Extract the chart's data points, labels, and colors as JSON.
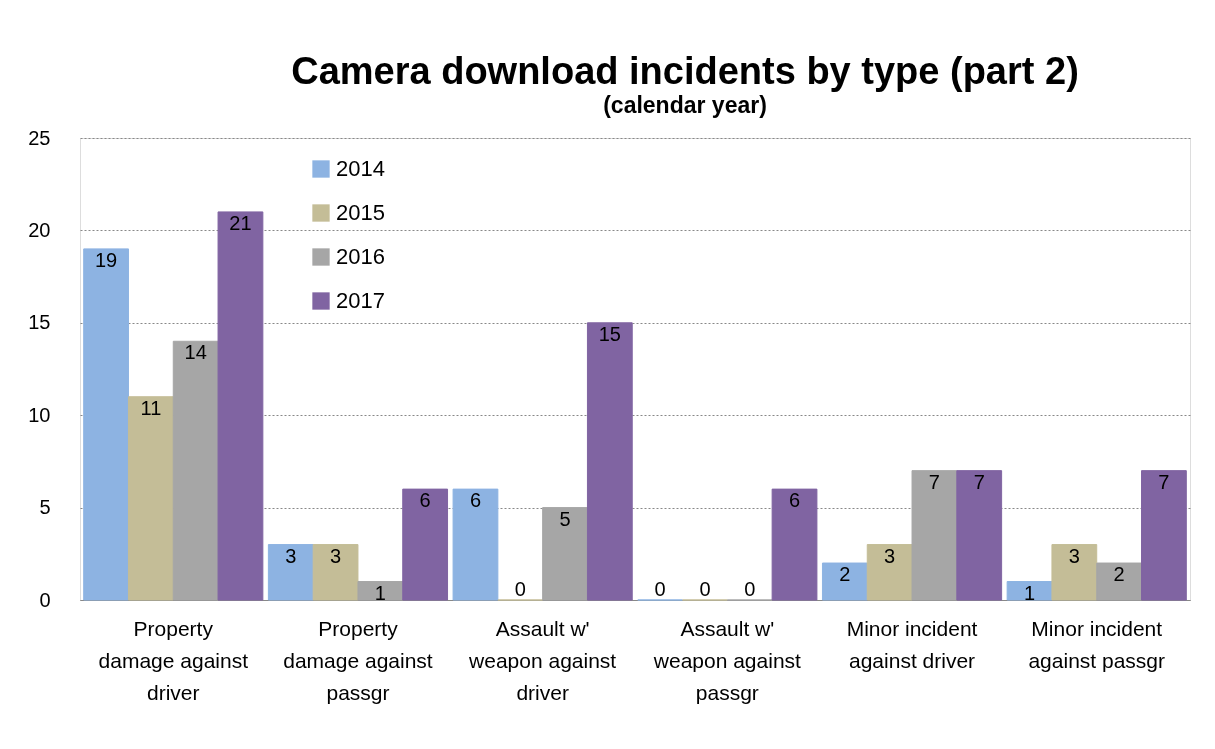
{
  "chart_data": {
    "type": "bar",
    "title": "Camera download incidents by type (part 2)",
    "subtitle": "(calendar year)",
    "categories": [
      "Property damage against driver",
      "Property damage against passgr",
      "Assault w' weapon against driver",
      "Assault w' weapon against passgr",
      "Minor incident against driver",
      "Minor incident against passgr"
    ],
    "series": [
      {
        "name": "2014",
        "color": "#8db3e2",
        "values": [
          19,
          3,
          6,
          0,
          2,
          1
        ]
      },
      {
        "name": "2015",
        "color": "#c4bd97",
        "values": [
          11,
          3,
          0,
          0,
          3,
          3
        ]
      },
      {
        "name": "2016",
        "color": "#a6a6a6",
        "values": [
          14,
          1,
          5,
          0,
          7,
          2
        ]
      },
      {
        "name": "2017",
        "color": "#8064a2",
        "values": [
          21,
          6,
          15,
          6,
          7,
          7
        ]
      }
    ],
    "ylim": [
      0,
      25
    ],
    "yticks": [
      0,
      5,
      10,
      15,
      20,
      25
    ],
    "grid": "y",
    "legend": "top left",
    "data_labels": true
  }
}
